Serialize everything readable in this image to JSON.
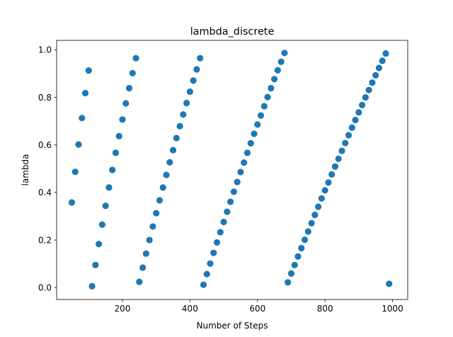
{
  "chart_data": {
    "type": "scatter",
    "title": "lambda_discrete",
    "xlabel": "Number of Steps",
    "ylabel": "lambda",
    "xlim": [
      5,
      1045
    ],
    "ylim": [
      -0.05,
      1.04
    ],
    "xticks": [
      200,
      400,
      600,
      800,
      1000
    ],
    "xtick_labels": [
      "200",
      "400",
      "600",
      "800",
      "1000"
    ],
    "yticks": [
      0.0,
      0.2,
      0.4,
      0.6,
      0.8,
      1.0
    ],
    "ytick_labels": [
      "0.0",
      "0.2",
      "0.4",
      "0.6",
      "0.8",
      "1.0"
    ],
    "grid": false,
    "legend": "none",
    "marker_color": "#1f77b4",
    "series": [
      {
        "x": [
          50,
          60,
          70,
          80,
          90,
          100,
          110,
          120,
          130,
          140,
          150,
          160,
          170,
          180,
          190,
          200,
          210,
          220,
          230,
          240,
          250,
          260,
          270,
          280,
          290,
          300,
          310,
          320,
          330,
          340,
          350,
          360,
          370,
          380,
          390,
          400,
          410,
          420,
          430,
          440,
          450,
          460,
          470,
          480,
          490,
          500,
          510,
          520,
          530,
          540,
          550,
          560,
          570,
          580,
          590,
          600,
          610,
          620,
          630,
          640,
          650,
          660,
          670,
          680,
          690,
          700,
          710,
          720,
          730,
          740,
          750,
          760,
          770,
          780,
          790,
          800,
          810,
          820,
          830,
          840,
          850,
          860,
          870,
          880,
          890,
          900,
          910,
          920,
          930,
          940,
          950,
          960,
          970,
          980,
          990
        ],
        "y": [
          0.358,
          0.487,
          0.602,
          0.713,
          0.818,
          0.913,
          0.006,
          0.095,
          0.183,
          0.265,
          0.344,
          0.421,
          0.495,
          0.567,
          0.637,
          0.707,
          0.775,
          0.839,
          0.902,
          0.965,
          0.024,
          0.084,
          0.143,
          0.2,
          0.257,
          0.313,
          0.367,
          0.421,
          0.474,
          0.527,
          0.578,
          0.629,
          0.679,
          0.728,
          0.776,
          0.824,
          0.871,
          0.918,
          0.965,
          0.012,
          0.057,
          0.101,
          0.146,
          0.19,
          0.233,
          0.276,
          0.319,
          0.361,
          0.403,
          0.444,
          0.486,
          0.526,
          0.567,
          0.607,
          0.647,
          0.686,
          0.724,
          0.763,
          0.801,
          0.839,
          0.877,
          0.914,
          0.95,
          0.987,
          0.022,
          0.059,
          0.095,
          0.131,
          0.166,
          0.201,
          0.236,
          0.271,
          0.306,
          0.34,
          0.375,
          0.409,
          0.442,
          0.476,
          0.509,
          0.542,
          0.575,
          0.608,
          0.641,
          0.673,
          0.705,
          0.737,
          0.768,
          0.8,
          0.831,
          0.862,
          0.893,
          0.924,
          0.954,
          0.985,
          0.016
        ]
      }
    ]
  }
}
